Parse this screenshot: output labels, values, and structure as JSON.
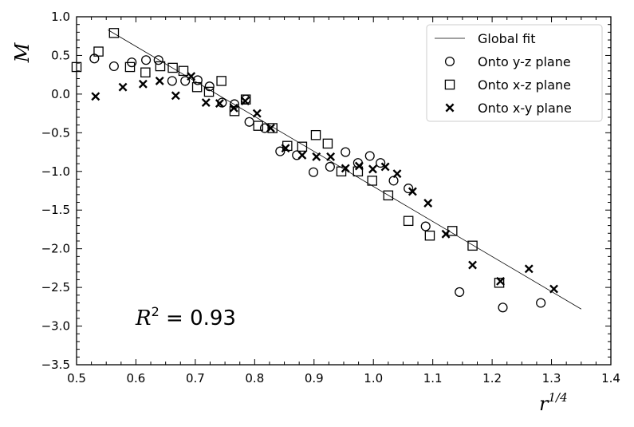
{
  "chart_data": {
    "type": "scatter",
    "title": "",
    "xlabel": "r",
    "xlabel_superscript": "1/4",
    "ylabel": "M",
    "xlim": [
      0.5,
      1.4
    ],
    "ylim": [
      -3.5,
      1.0
    ],
    "xticks": [
      0.5,
      0.6,
      0.7,
      0.8,
      0.9,
      1.0,
      1.1,
      1.2,
      1.3,
      1.4
    ],
    "yticks": [
      1.0,
      0.5,
      0.0,
      -0.5,
      -1.0,
      -1.5,
      -2.0,
      -2.5,
      -3.0,
      -3.5
    ],
    "grid": false,
    "legend_position": "top-right",
    "annotation": {
      "prefix": "R",
      "superscript": "2",
      "suffix": " = 0.93"
    },
    "fit_line": {
      "name": "Global fit",
      "x": [
        0.553,
        1.35
      ],
      "y": [
        0.83,
        -2.78
      ]
    },
    "series": [
      {
        "name": "Onto y-z plane",
        "marker": "circle",
        "points": [
          [
            0.53,
            0.46
          ],
          [
            0.563,
            0.36
          ],
          [
            0.593,
            0.41
          ],
          [
            0.617,
            0.44
          ],
          [
            0.638,
            0.44
          ],
          [
            0.661,
            0.17
          ],
          [
            0.683,
            0.17
          ],
          [
            0.704,
            0.18
          ],
          [
            0.724,
            0.1
          ],
          [
            0.745,
            -0.11
          ],
          [
            0.766,
            -0.13
          ],
          [
            0.785,
            -0.07
          ],
          [
            0.791,
            -0.36
          ],
          [
            0.817,
            -0.44
          ],
          [
            0.843,
            -0.74
          ],
          [
            0.871,
            -0.79
          ],
          [
            0.899,
            -1.01
          ],
          [
            0.927,
            -0.94
          ],
          [
            0.953,
            -0.75
          ],
          [
            0.974,
            -0.89
          ],
          [
            0.994,
            -0.8
          ],
          [
            1.012,
            -0.89
          ],
          [
            1.034,
            -1.12
          ],
          [
            1.059,
            -1.22
          ],
          [
            1.088,
            -1.71
          ],
          [
            1.145,
            -2.56
          ],
          [
            1.218,
            -2.76
          ],
          [
            1.282,
            -2.7
          ]
        ]
      },
      {
        "name": "Onto x-z plane",
        "marker": "square",
        "points": [
          [
            0.5,
            0.35
          ],
          [
            0.537,
            0.55
          ],
          [
            0.563,
            0.79
          ],
          [
            0.59,
            0.35
          ],
          [
            0.616,
            0.28
          ],
          [
            0.641,
            0.36
          ],
          [
            0.662,
            0.34
          ],
          [
            0.68,
            0.3
          ],
          [
            0.703,
            0.09
          ],
          [
            0.723,
            0.03
          ],
          [
            0.744,
            0.17
          ],
          [
            0.766,
            -0.22
          ],
          [
            0.785,
            -0.07
          ],
          [
            0.806,
            -0.41
          ],
          [
            0.83,
            -0.44
          ],
          [
            0.855,
            -0.67
          ],
          [
            0.88,
            -0.68
          ],
          [
            0.903,
            -0.53
          ],
          [
            0.923,
            -0.64
          ],
          [
            0.946,
            -1.0
          ],
          [
            0.974,
            -1.0
          ],
          [
            0.998,
            -1.12
          ],
          [
            1.025,
            -1.31
          ],
          [
            1.059,
            -1.64
          ],
          [
            1.095,
            -1.83
          ],
          [
            1.133,
            -1.77
          ],
          [
            1.167,
            -1.96
          ],
          [
            1.212,
            -2.44
          ]
        ]
      },
      {
        "name": "Onto x-y plane",
        "marker": "cross",
        "points": [
          [
            0.532,
            -0.03
          ],
          [
            0.578,
            0.09
          ],
          [
            0.612,
            0.13
          ],
          [
            0.64,
            0.17
          ],
          [
            0.667,
            -0.02
          ],
          [
            0.693,
            0.23
          ],
          [
            0.718,
            -0.11
          ],
          [
            0.741,
            -0.12
          ],
          [
            0.765,
            -0.18
          ],
          [
            0.784,
            -0.09
          ],
          [
            0.804,
            -0.25
          ],
          [
            0.827,
            -0.44
          ],
          [
            0.852,
            -0.7
          ],
          [
            0.88,
            -0.79
          ],
          [
            0.904,
            -0.81
          ],
          [
            0.928,
            -0.81
          ],
          [
            0.953,
            -0.96
          ],
          [
            0.976,
            -0.93
          ],
          [
            0.999,
            -0.97
          ],
          [
            1.02,
            -0.94
          ],
          [
            1.04,
            -1.03
          ],
          [
            1.066,
            -1.26
          ],
          [
            1.092,
            -1.41
          ],
          [
            1.122,
            -1.81
          ],
          [
            1.167,
            -2.21
          ],
          [
            1.214,
            -2.42
          ],
          [
            1.262,
            -2.26
          ],
          [
            1.304,
            -2.52
          ]
        ]
      }
    ],
    "colors": {
      "marker": "#000000",
      "fit": "#000000",
      "background": "#ffffff"
    }
  }
}
